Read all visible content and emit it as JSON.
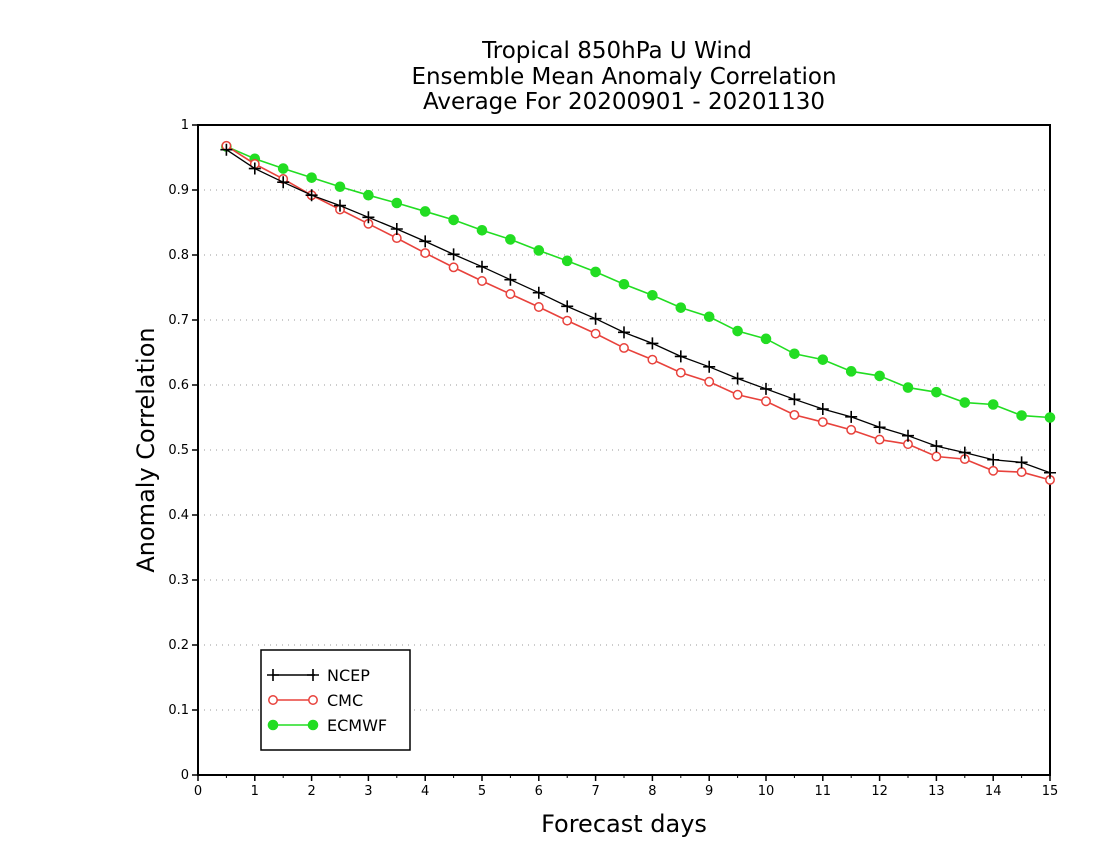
{
  "chart_data": {
    "type": "line",
    "title_lines": [
      "Tropical 850hPa U Wind",
      "Ensemble Mean Anomaly Correlation",
      "Average For 20200901 - 20201130"
    ],
    "xlabel": "Forecast days",
    "ylabel": "Anomaly Correlation",
    "xlim": [
      0,
      15
    ],
    "ylim": [
      0,
      1
    ],
    "x_ticks": [
      0,
      1,
      2,
      3,
      4,
      5,
      6,
      7,
      8,
      9,
      10,
      11,
      12,
      13,
      14,
      15
    ],
    "x_tick_labels": [
      "0",
      "1",
      "2",
      "3",
      "4",
      "5",
      "6",
      "7",
      "8",
      "9",
      "10",
      "11",
      "12",
      "13",
      "14",
      "15"
    ],
    "y_ticks": [
      0,
      0.1,
      0.2,
      0.3,
      0.4,
      0.5,
      0.6,
      0.7,
      0.8,
      0.9,
      1
    ],
    "y_tick_labels": [
      "0",
      "0.1",
      "0.2",
      "0.3",
      "0.4",
      "0.5",
      "0.6",
      "0.7",
      "0.8",
      "0.9",
      "1"
    ],
    "grid": "horizontal dotted",
    "legend_position": "bottom-left",
    "x": [
      0.5,
      1,
      1.5,
      2,
      2.5,
      3,
      3.5,
      4,
      4.5,
      5,
      5.5,
      6,
      6.5,
      7,
      7.5,
      8,
      8.5,
      9,
      9.5,
      10,
      10.5,
      11,
      11.5,
      12,
      12.5,
      13,
      13.5,
      14,
      14.5,
      15
    ],
    "series": [
      {
        "name": "NCEP",
        "color": "#000000",
        "marker": "plus",
        "values": [
          0.962,
          0.933,
          0.912,
          0.892,
          0.876,
          0.858,
          0.84,
          0.821,
          0.801,
          0.782,
          0.762,
          0.742,
          0.721,
          0.702,
          0.681,
          0.664,
          0.644,
          0.628,
          0.61,
          0.594,
          0.578,
          0.563,
          0.551,
          0.535,
          0.522,
          0.506,
          0.496,
          0.485,
          0.481,
          0.465
        ]
      },
      {
        "name": "CMC",
        "color": "#e8423c",
        "marker": "open-circle",
        "values": [
          0.968,
          0.94,
          0.917,
          0.892,
          0.87,
          0.848,
          0.826,
          0.803,
          0.781,
          0.76,
          0.74,
          0.72,
          0.699,
          0.679,
          0.657,
          0.639,
          0.619,
          0.605,
          0.585,
          0.575,
          0.554,
          0.543,
          0.531,
          0.516,
          0.509,
          0.49,
          0.486,
          0.468,
          0.466,
          0.454
        ]
      },
      {
        "name": "ECMWF",
        "color": "#22dd22",
        "marker": "filled-circle",
        "values": [
          0.967,
          0.948,
          0.933,
          0.919,
          0.905,
          0.892,
          0.88,
          0.867,
          0.854,
          0.838,
          0.824,
          0.807,
          0.791,
          0.774,
          0.755,
          0.738,
          0.719,
          0.705,
          0.683,
          0.671,
          0.648,
          0.639,
          0.621,
          0.614,
          0.596,
          0.589,
          0.573,
          0.57,
          0.553,
          0.55
        ]
      }
    ]
  }
}
